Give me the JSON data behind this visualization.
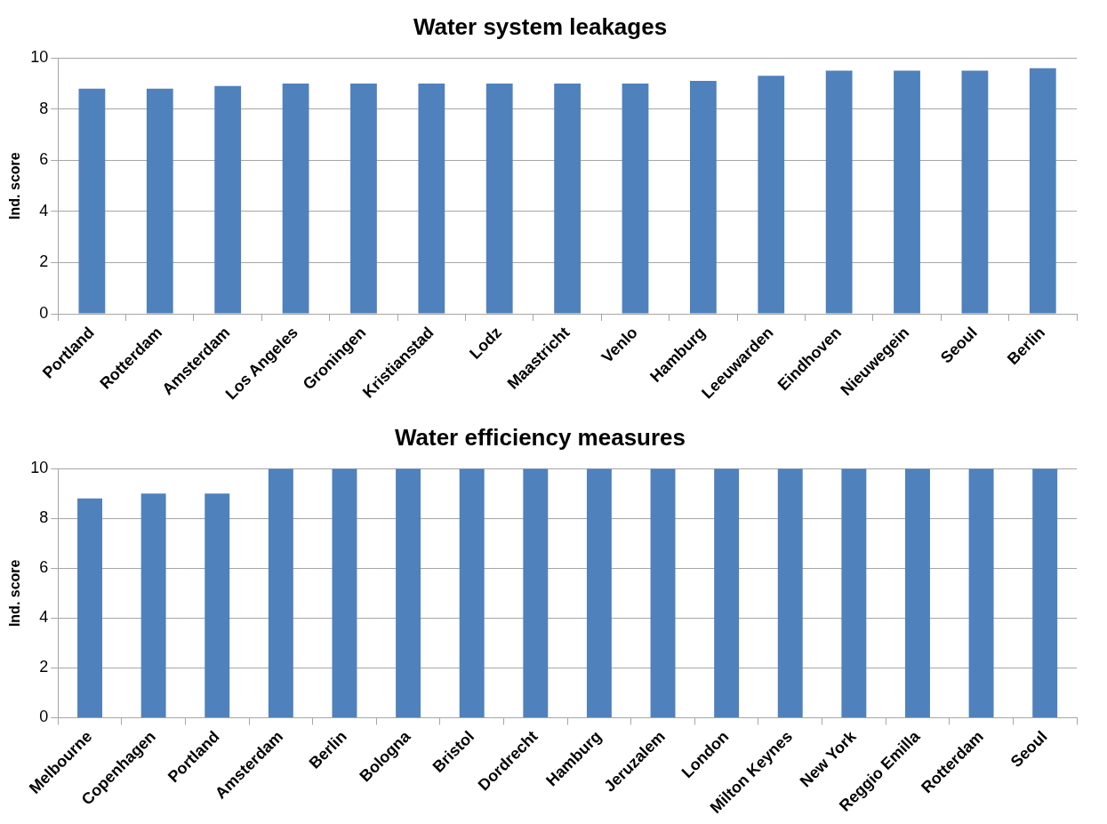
{
  "chart_data": [
    {
      "type": "bar",
      "title": "Water system leakages",
      "ylabel": "Ind. score",
      "categories": [
        "Portland",
        "Rotterdam",
        "Amsterdam",
        "Los Angeles",
        "Groningen",
        "Kristianstad",
        "Lodz",
        "Maastricht",
        "Venlo",
        "Hamburg",
        "Leeuwarden",
        "Eindhoven",
        "Nieuwegein",
        "Seoul",
        "Berlin"
      ],
      "values": [
        8.8,
        8.8,
        8.9,
        9.0,
        9.0,
        9.0,
        9.0,
        9.0,
        9.0,
        9.1,
        9.3,
        9.5,
        9.5,
        9.5,
        9.6
      ],
      "color": "#4f81bd",
      "ylim": [
        0,
        10
      ],
      "yticks": [
        0,
        2,
        4,
        6,
        8,
        10
      ],
      "grid": "y",
      "legend": false
    },
    {
      "type": "bar",
      "title": "Water efficiency measures",
      "ylabel": "Ind. score",
      "categories": [
        "Melbourne",
        "Copenhagen",
        "Portland",
        "Amsterdam",
        "Berlin",
        "Bologna",
        "Bristol",
        "Dordrecht",
        "Hamburg",
        "Jeruzalem",
        "London",
        "Milton Keynes",
        "New York",
        "Reggio Emilla",
        "Rotterdam",
        "Seoul"
      ],
      "values": [
        8.8,
        9.0,
        9.0,
        10,
        10,
        10,
        10,
        10,
        10,
        10,
        10,
        10,
        10,
        10,
        10,
        10
      ],
      "color": "#4f81bd",
      "ylim": [
        0,
        10
      ],
      "yticks": [
        0,
        2,
        4,
        6,
        8,
        10
      ],
      "grid": "y",
      "legend": false
    }
  ]
}
